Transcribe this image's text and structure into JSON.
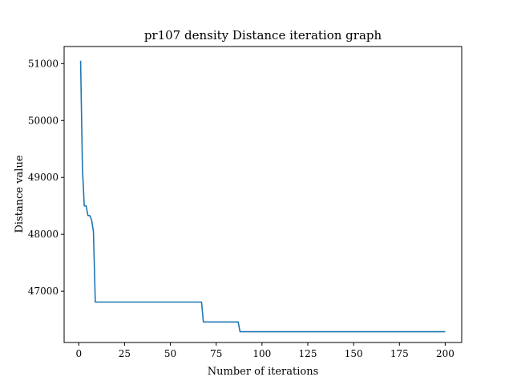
{
  "chart_data": {
    "type": "line",
    "title": "pr107 density Distance iteration graph",
    "xlabel": "Number of iterations",
    "ylabel": "Distance value",
    "xlim": [
      -8,
      209
    ],
    "ylim": [
      46100,
      51300
    ],
    "grid": false,
    "x_ticks": [
      0,
      25,
      50,
      75,
      100,
      125,
      150,
      175,
      200
    ],
    "x_tick_labels": [
      "0",
      "25",
      "50",
      "75",
      "100",
      "125",
      "150",
      "175",
      "200"
    ],
    "y_ticks": [
      47000,
      48000,
      49000,
      50000,
      51000
    ],
    "y_tick_labels": [
      "47000",
      "48000",
      "49000",
      "50000",
      "51000"
    ],
    "series": [
      {
        "color": "#1f77b4",
        "x": [
          1,
          2,
          3,
          4,
          5,
          6,
          7,
          8,
          9,
          10,
          20,
          30,
          40,
          50,
          60,
          67,
          68,
          75,
          80,
          87,
          88,
          100,
          150,
          200
        ],
        "y": [
          51050,
          49150,
          48500,
          48500,
          48330,
          48330,
          48250,
          48050,
          46810,
          46810,
          46810,
          46810,
          46810,
          46810,
          46810,
          46810,
          46460,
          46460,
          46460,
          46460,
          46290,
          46290,
          46290,
          46290
        ]
      }
    ]
  }
}
